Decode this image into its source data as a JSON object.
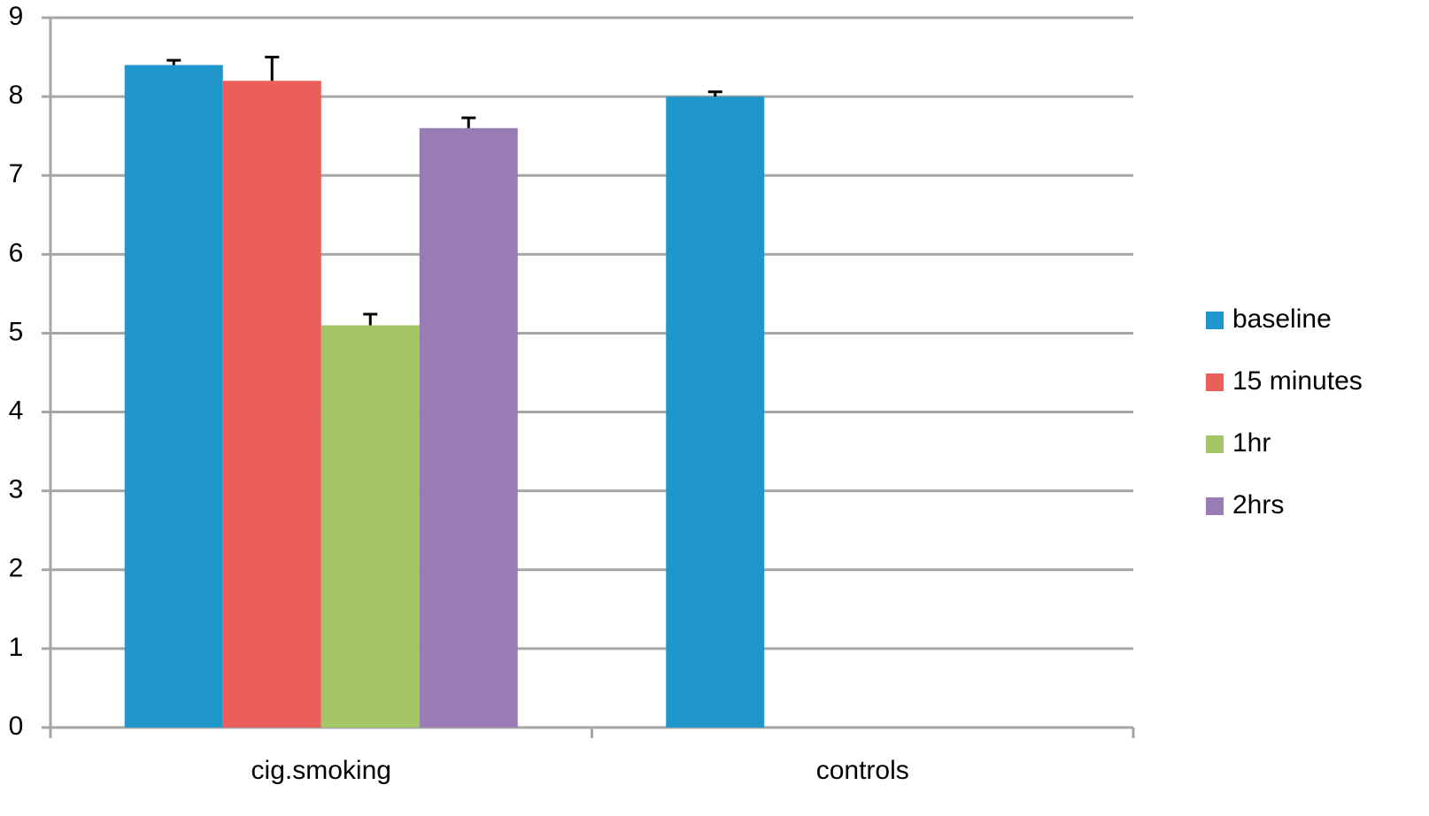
{
  "chart_data": {
    "type": "bar",
    "categories": [
      "cig.smoking",
      "controls"
    ],
    "series": [
      {
        "name": "baseline",
        "color": "#1f97cc",
        "values": [
          8.4,
          8.0
        ],
        "errors": [
          0.06,
          0.06
        ]
      },
      {
        "name": "15 minutes",
        "color": "#eb5f5a",
        "values": [
          8.2,
          null
        ],
        "errors": [
          0.3,
          null
        ]
      },
      {
        "name": "1hr",
        "color": "#a3c566",
        "values": [
          5.1,
          null
        ],
        "errors": [
          0.14,
          null
        ]
      },
      {
        "name": "2hrs",
        "color": "#9a7cb4",
        "values": [
          7.6,
          null
        ],
        "errors": [
          0.13,
          null
        ]
      }
    ],
    "ylim": [
      0,
      9
    ],
    "yticks": [
      0,
      1,
      2,
      3,
      4,
      5,
      6,
      7,
      8,
      9
    ],
    "grid": true,
    "legend": "right"
  }
}
